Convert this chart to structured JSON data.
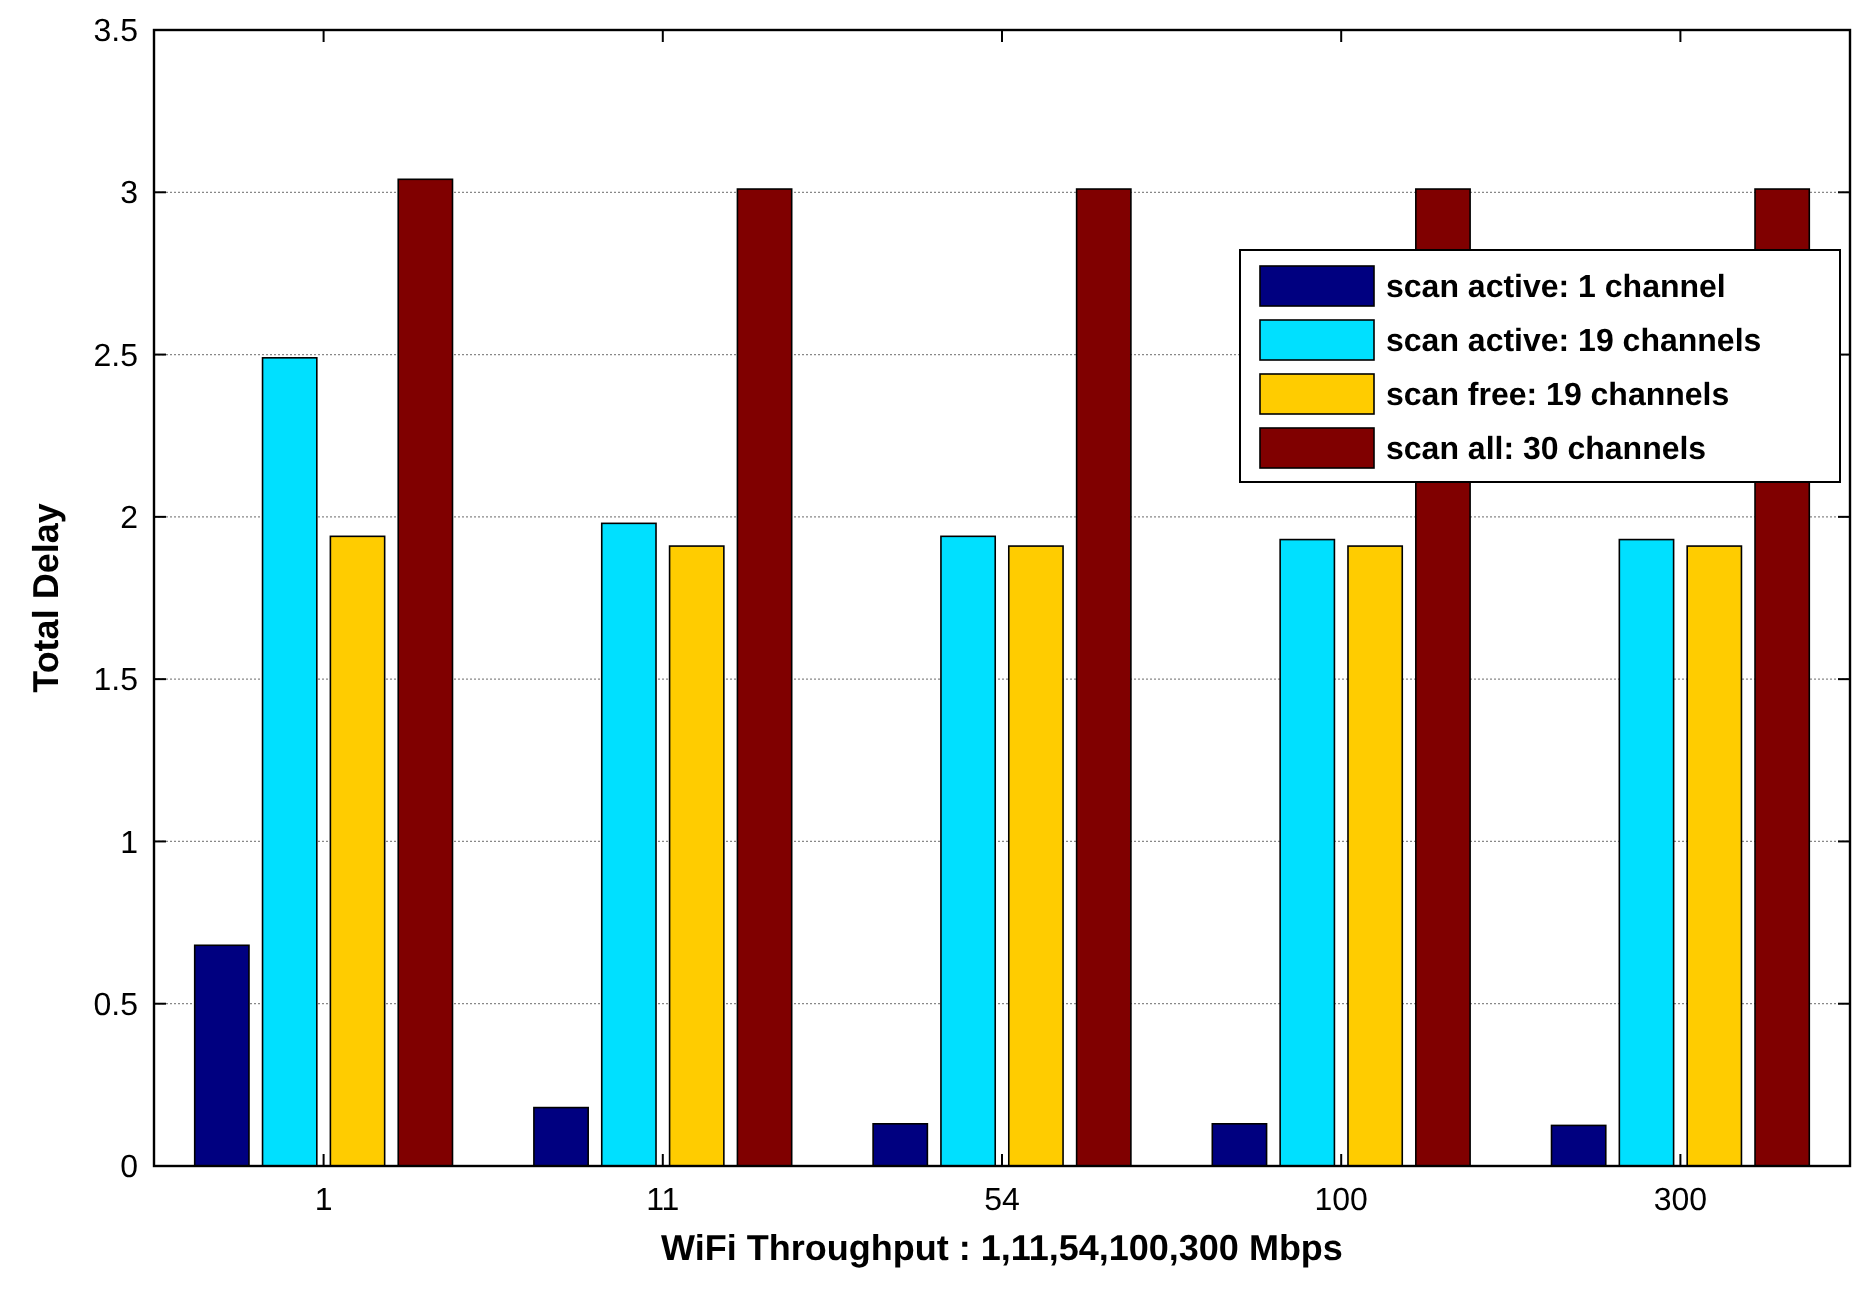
{
  "chart_data": {
    "type": "bar",
    "xlabel": "WiFi Throughput : 1,11,54,100,300 Mbps",
    "ylabel": "Total Delay",
    "categories": [
      "1",
      "11",
      "54",
      "100",
      "300"
    ],
    "series": [
      {
        "name": "scan active: 1 channel",
        "color": "#000080",
        "values": [
          0.68,
          0.18,
          0.13,
          0.13,
          0.125
        ]
      },
      {
        "name": "scan active: 19 channels",
        "color": "#00e0ff",
        "values": [
          2.49,
          1.98,
          1.94,
          1.93,
          1.93
        ]
      },
      {
        "name": "scan free: 19 channels",
        "color": "#ffcc00",
        "values": [
          1.94,
          1.91,
          1.91,
          1.91,
          1.91
        ]
      },
      {
        "name": "scan all: 30 channels",
        "color": "#800000",
        "values": [
          3.04,
          3.01,
          3.01,
          3.01,
          3.01
        ]
      }
    ],
    "ylim": [
      0,
      3.5
    ],
    "yticks": [
      0,
      0.5,
      1,
      1.5,
      2,
      2.5,
      3,
      3.5
    ],
    "grid": "y",
    "legend": "top right"
  }
}
